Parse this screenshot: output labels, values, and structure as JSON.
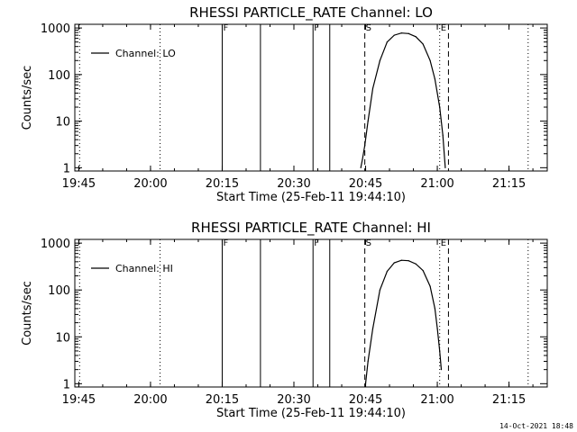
{
  "footer": {
    "timestamp": "14-Oct-2021 18:48"
  },
  "chart_data": [
    {
      "type": "line",
      "title": "RHESSI PARTICLE_RATE Channel: LO",
      "xlabel": "Start Time (25-Feb-11 19:44:10)",
      "ylabel": "Counts/sec",
      "yscale": "log",
      "xlim": [
        "19:44:10",
        "21:23:00"
      ],
      "ylim": [
        0.85,
        1200
      ],
      "x_ticks": [
        "19:45",
        "20:00",
        "20:15",
        "20:30",
        "20:45",
        "21:00",
        "21:15"
      ],
      "y_ticks": [
        "1",
        "10",
        "100",
        "1000"
      ],
      "legend": {
        "position": "top-left",
        "entries": [
          "Channel: LO"
        ]
      },
      "series": [
        {
          "name": "Channel: LO",
          "x": [
            "20:44:00",
            "20:44:20",
            "20:44:50",
            "20:45:30",
            "20:46:30",
            "20:48:00",
            "20:49:30",
            "20:51:00",
            "20:52:30",
            "20:54:00",
            "20:55:30",
            "20:57:00",
            "20:58:30",
            "20:59:30",
            "21:00:30",
            "21:01:10",
            "21:01:40"
          ],
          "y": [
            1,
            1.5,
            3,
            10,
            50,
            200,
            500,
            700,
            780,
            760,
            650,
            450,
            200,
            80,
            20,
            5,
            1
          ]
        }
      ],
      "vlines": [
        {
          "x": "19:45:10",
          "style": "dotted"
        },
        {
          "x": "20:02:00",
          "style": "dotted"
        },
        {
          "x": "20:15:00",
          "style": "solid",
          "label": "F"
        },
        {
          "x": "20:23:00",
          "style": "solid"
        },
        {
          "x": "20:34:00",
          "style": "solid",
          "label": "F"
        },
        {
          "x": "20:37:30",
          "style": "solid"
        },
        {
          "x": "20:44:50",
          "style": "dashed",
          "label": "S"
        },
        {
          "x": "21:00:30",
          "style": "dotted",
          "label": "E"
        },
        {
          "x": "21:02:20",
          "style": "dashed"
        },
        {
          "x": "21:19:00",
          "style": "dotted"
        }
      ]
    },
    {
      "type": "line",
      "title": "RHESSI PARTICLE_RATE Channel: HI",
      "xlabel": "Start Time (25-Feb-11 19:44:10)",
      "ylabel": "Counts/sec",
      "yscale": "log",
      "xlim": [
        "19:44:10",
        "21:23:00"
      ],
      "ylim": [
        0.85,
        1200
      ],
      "x_ticks": [
        "19:45",
        "20:00",
        "20:15",
        "20:30",
        "20:45",
        "21:00",
        "21:15"
      ],
      "y_ticks": [
        "1",
        "10",
        "100",
        "1000"
      ],
      "legend": {
        "position": "top-left",
        "entries": [
          "Channel: HI"
        ]
      },
      "series": [
        {
          "name": "Channel: HI",
          "x": [
            "20:45:00",
            "20:45:30",
            "20:46:30",
            "20:48:00",
            "20:49:30",
            "20:51:00",
            "20:52:30",
            "20:54:00",
            "20:55:30",
            "20:57:00",
            "20:58:30",
            "20:59:30",
            "21:00:00",
            "21:00:30",
            "21:00:50"
          ],
          "y": [
            1,
            3,
            15,
            100,
            250,
            380,
            430,
            420,
            360,
            260,
            120,
            40,
            15,
            5,
            2
          ]
        }
      ],
      "vlines": [
        {
          "x": "19:45:10",
          "style": "dotted"
        },
        {
          "x": "20:02:00",
          "style": "dotted"
        },
        {
          "x": "20:15:00",
          "style": "solid",
          "label": "F"
        },
        {
          "x": "20:23:00",
          "style": "solid"
        },
        {
          "x": "20:34:00",
          "style": "solid",
          "label": "F"
        },
        {
          "x": "20:37:30",
          "style": "solid"
        },
        {
          "x": "20:44:50",
          "style": "dashed",
          "label": "S"
        },
        {
          "x": "21:00:30",
          "style": "dotted",
          "label": "E"
        },
        {
          "x": "21:02:20",
          "style": "dashed"
        },
        {
          "x": "21:19:00",
          "style": "dotted"
        }
      ]
    }
  ]
}
